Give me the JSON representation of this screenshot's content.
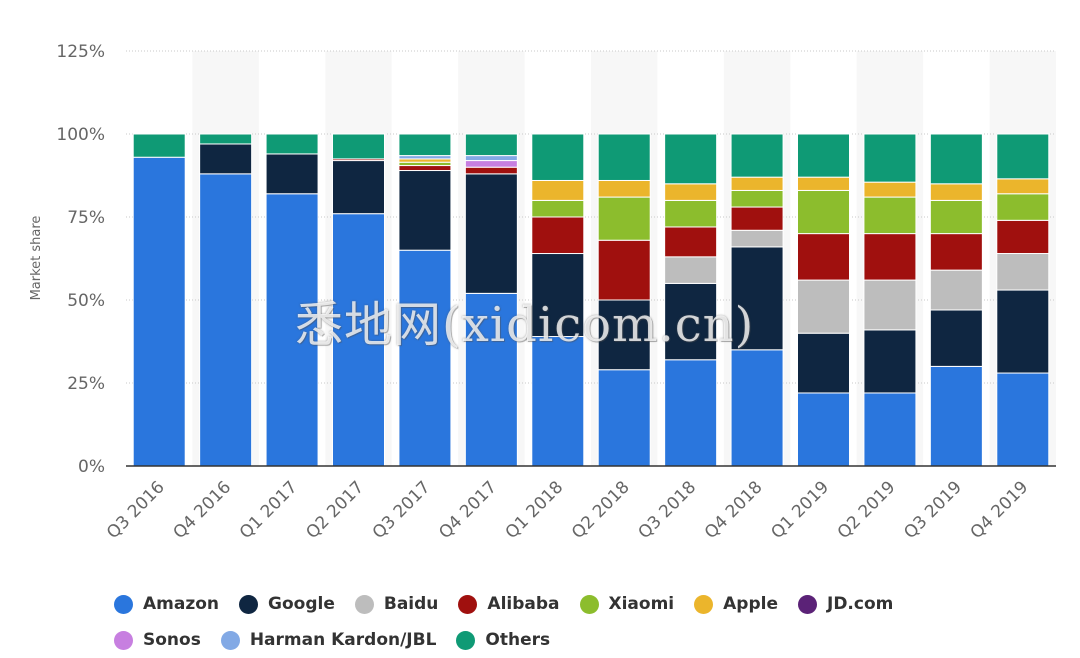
{
  "chart_data": {
    "type": "bar",
    "stacked": true,
    "ylabel": "Market share",
    "ylim": [
      0,
      125
    ],
    "yticks": [
      0,
      25,
      50,
      75,
      100,
      125
    ],
    "ytick_labels": [
      "0%",
      "25%",
      "50%",
      "75%",
      "100%",
      "125%"
    ],
    "grid": true,
    "legend_position": "bottom",
    "categories": [
      "Q3 2016",
      "Q4 2016",
      "Q1 2017",
      "Q2 2017",
      "Q3 2017",
      "Q4 2017",
      "Q1 2018",
      "Q2 2018",
      "Q3 2018",
      "Q4 2018",
      "Q1 2019",
      "Q2 2019",
      "Q3 2019",
      "Q4 2019"
    ],
    "series": [
      {
        "name": "Amazon",
        "color": "#2a76dd",
        "values": [
          93,
          88,
          82,
          76,
          65,
          52,
          39,
          29,
          32,
          35,
          22,
          22,
          30,
          28
        ]
      },
      {
        "name": "Google",
        "color": "#0f2641",
        "values": [
          0,
          9,
          12,
          16,
          24,
          36,
          25,
          21,
          23,
          31,
          18,
          19,
          17,
          25
        ]
      },
      {
        "name": "Baidu",
        "color": "#bdbdbd",
        "values": [
          0,
          0,
          0,
          0,
          0,
          0,
          0,
          0,
          8,
          5,
          16,
          15,
          12,
          11
        ]
      },
      {
        "name": "Alibaba",
        "color": "#a0100e",
        "values": [
          0,
          0,
          0,
          0.5,
          1.5,
          2,
          11,
          18,
          9,
          7,
          14,
          14,
          11,
          10
        ]
      },
      {
        "name": "Xiaomi",
        "color": "#8cbd2d",
        "values": [
          0,
          0,
          0,
          0,
          1,
          0,
          5,
          13,
          8,
          5,
          13,
          11,
          10,
          8
        ]
      },
      {
        "name": "Apple",
        "color": "#ebb52c",
        "values": [
          0,
          0,
          0,
          0,
          1,
          0,
          6,
          5,
          5,
          4,
          4,
          4.5,
          5,
          4.5
        ]
      },
      {
        "name": "JD.com",
        "color": "#5b2277",
        "values": [
          0,
          0,
          0,
          0,
          0,
          0,
          0,
          0,
          0,
          0,
          0,
          0,
          0,
          0
        ]
      },
      {
        "name": "Sonos",
        "color": "#c77fe0",
        "values": [
          0,
          0,
          0,
          0,
          0,
          2,
          0,
          0,
          0,
          0,
          0,
          0,
          0,
          0
        ]
      },
      {
        "name": "Harman Kardon/JBL",
        "color": "#82a9e5",
        "values": [
          0,
          0,
          0,
          0,
          1,
          1.5,
          0,
          0,
          0,
          0,
          0,
          0,
          0,
          0
        ]
      },
      {
        "name": "Others",
        "color": "#0f9a75",
        "values": [
          7,
          3,
          6,
          7.5,
          6.5,
          6.5,
          14,
          14,
          15,
          13,
          13,
          14.5,
          15,
          13.5
        ]
      }
    ]
  }
}
